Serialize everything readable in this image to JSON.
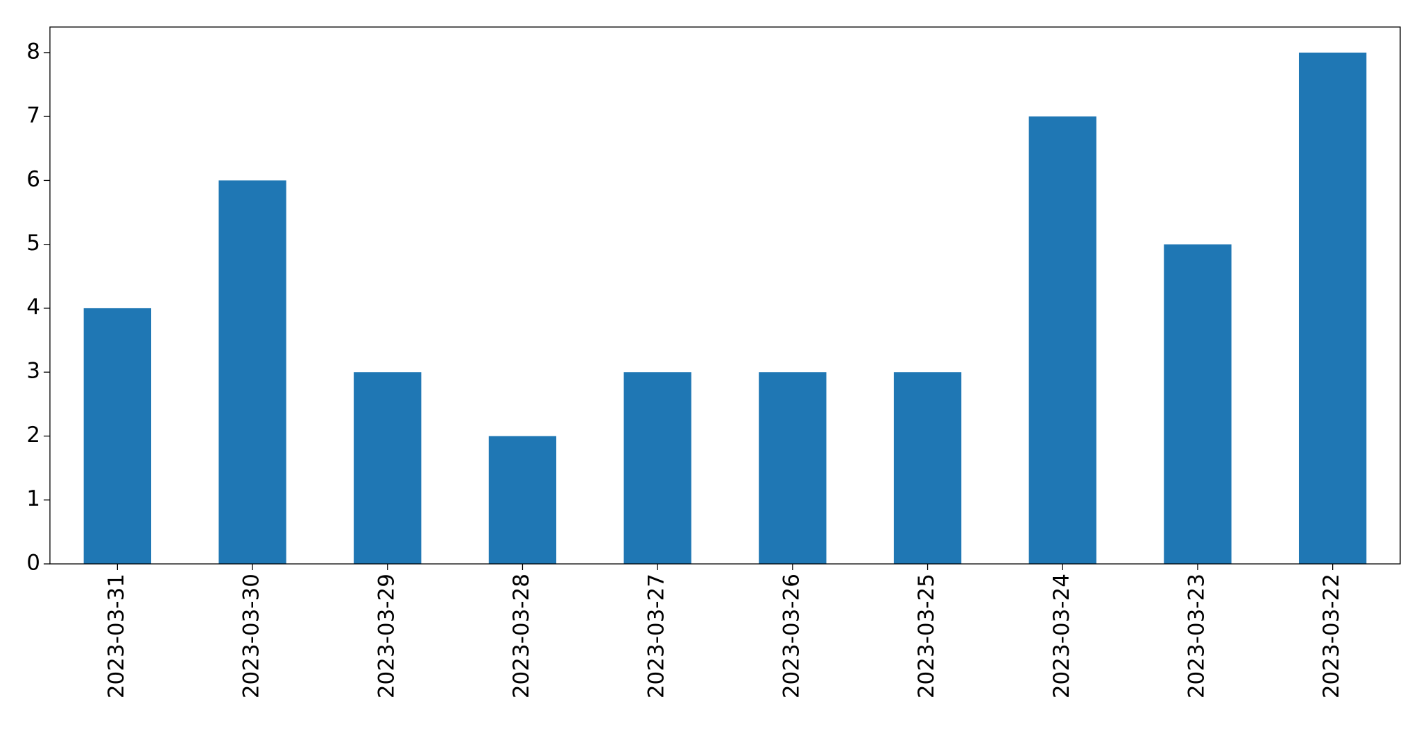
{
  "chart_data": {
    "type": "bar",
    "categories": [
      "2023-03-31",
      "2023-03-30",
      "2023-03-29",
      "2023-03-28",
      "2023-03-27",
      "2023-03-26",
      "2023-03-25",
      "2023-03-24",
      "2023-03-23",
      "2023-03-22"
    ],
    "values": [
      4,
      6,
      3,
      2,
      3,
      3,
      3,
      7,
      5,
      8
    ],
    "color": "#1f77b4",
    "ylim": [
      0,
      8.4
    ],
    "yticks": [
      0,
      1,
      2,
      3,
      4,
      5,
      6,
      7,
      8
    ],
    "grid": false
  }
}
